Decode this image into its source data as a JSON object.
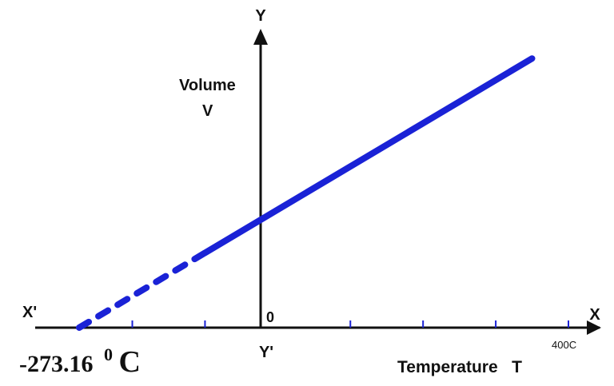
{
  "chart_data": {
    "type": "line",
    "series": [
      {
        "style": "dashed",
        "color": "#1a22d6",
        "x": [
          -273.16,
          -100
        ],
        "y": [
          0,
          0.634
        ]
      },
      {
        "style": "solid",
        "color": "#1a22d6",
        "x": [
          -100,
          350
        ],
        "y": [
          0.634,
          2.282
        ]
      }
    ],
    "xlim": [
      -300,
      400
    ],
    "ylim": [
      0,
      2.5
    ],
    "axis_labels": {
      "x": "X",
      "x_neg": "X'",
      "y": "Y",
      "y_neg": "Y'",
      "origin": "0",
      "ylabel_line1": "Volume",
      "ylabel_line2": "V",
      "xlabel": "Temperature   T",
      "x_max_label": "400C"
    },
    "annotation": {
      "value": "-273.16",
      "superscript": "0",
      "unit": "C"
    },
    "axis_color": "#111111",
    "tick_color": "#1a22d6"
  }
}
